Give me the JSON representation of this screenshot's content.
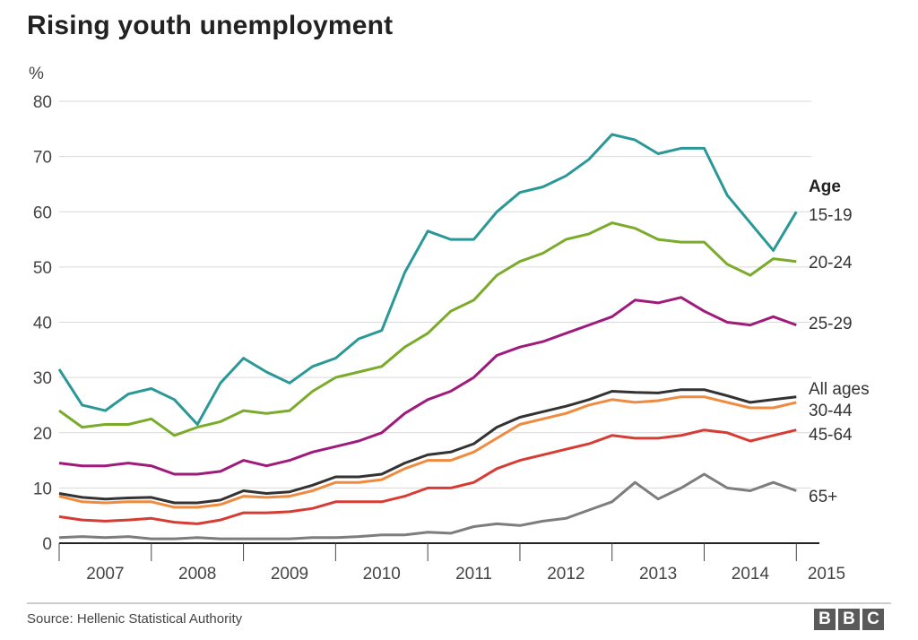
{
  "chart_data": {
    "type": "line",
    "title": "Rising youth unemployment",
    "ylabel": "%",
    "ylim": [
      0,
      80
    ],
    "yticks": [
      0,
      10,
      20,
      30,
      40,
      50,
      60,
      70,
      80
    ],
    "years": [
      "2007",
      "2008",
      "2009",
      "2010",
      "2011",
      "2012",
      "2013",
      "2014",
      "2015"
    ],
    "x_range": [
      2006.75,
      2015.0
    ],
    "grid": true,
    "legend_title": "Age",
    "legend_placement": "right",
    "x": [
      2006.75,
      2007.0,
      2007.25,
      2007.5,
      2007.75,
      2008.0,
      2008.25,
      2008.5,
      2008.75,
      2009.0,
      2009.25,
      2009.5,
      2009.75,
      2010.0,
      2010.25,
      2010.5,
      2010.75,
      2011.0,
      2011.25,
      2011.5,
      2011.75,
      2012.0,
      2012.25,
      2012.5,
      2012.75,
      2013.0,
      2013.25,
      2013.5,
      2013.75,
      2014.0,
      2014.25,
      2014.5,
      2014.75
    ],
    "series": [
      {
        "name": "15-19",
        "color": "#2a9896",
        "values": [
          31.5,
          25.0,
          24.0,
          27.0,
          28.0,
          26.0,
          21.5,
          29.0,
          33.5,
          31.0,
          29.0,
          32.0,
          33.5,
          37.0,
          38.5,
          49.0,
          56.5,
          55.0,
          55.0,
          60.0,
          63.5,
          64.5,
          66.5,
          69.5,
          74.0,
          73.0,
          70.5,
          71.5,
          71.5,
          63.0,
          58.0,
          53.0,
          60.0
        ]
      },
      {
        "name": "20-24",
        "color": "#7bab2a",
        "values": [
          24.0,
          21.0,
          21.5,
          21.5,
          22.5,
          19.5,
          21.0,
          22.0,
          24.0,
          23.5,
          24.0,
          27.5,
          30.0,
          31.0,
          32.0,
          35.5,
          38.0,
          42.0,
          44.0,
          48.5,
          51.0,
          52.5,
          55.0,
          56.0,
          58.0,
          57.0,
          55.0,
          54.5,
          54.5,
          50.5,
          48.5,
          51.5,
          51.0
        ]
      },
      {
        "name": "25-29",
        "color": "#9e1a7b",
        "values": [
          14.5,
          14.0,
          14.0,
          14.5,
          14.0,
          12.5,
          12.5,
          13.0,
          15.0,
          14.0,
          15.0,
          16.5,
          17.5,
          18.5,
          20.0,
          23.5,
          26.0,
          27.5,
          30.0,
          34.0,
          35.5,
          36.5,
          38.0,
          39.5,
          41.0,
          44.0,
          43.5,
          44.5,
          42.0,
          40.0,
          39.5,
          41.0,
          39.5
        ]
      },
      {
        "name": "All ages",
        "color": "#333333",
        "values": [
          9.0,
          8.3,
          8.0,
          8.2,
          8.3,
          7.3,
          7.3,
          7.8,
          9.5,
          9.0,
          9.3,
          10.5,
          12.0,
          12.0,
          12.5,
          14.5,
          16.0,
          16.5,
          18.0,
          21.0,
          22.8,
          23.8,
          24.8,
          26.0,
          27.5,
          27.3,
          27.2,
          27.8,
          27.8,
          26.7,
          25.5,
          26.0,
          26.5
        ]
      },
      {
        "name": "30-44",
        "color": "#f08a3e",
        "values": [
          8.5,
          7.5,
          7.3,
          7.5,
          7.5,
          6.5,
          6.5,
          7.0,
          8.5,
          8.3,
          8.5,
          9.5,
          11.0,
          11.0,
          11.5,
          13.5,
          15.0,
          15.0,
          16.5,
          19.0,
          21.5,
          22.5,
          23.5,
          25.0,
          26.0,
          25.5,
          25.8,
          26.5,
          26.5,
          25.5,
          24.5,
          24.5,
          25.5
        ]
      },
      {
        "name": "45-64",
        "color": "#d63c34",
        "values": [
          4.8,
          4.2,
          4.0,
          4.2,
          4.5,
          3.8,
          3.5,
          4.2,
          5.5,
          5.5,
          5.7,
          6.3,
          7.5,
          7.5,
          7.5,
          8.5,
          10.0,
          10.0,
          11.0,
          13.5,
          15.0,
          16.0,
          17.0,
          18.0,
          19.5,
          19.0,
          19.0,
          19.5,
          20.5,
          20.0,
          18.5,
          19.5,
          20.5
        ]
      },
      {
        "name": "65+",
        "color": "#7d7d7d",
        "values": [
          1.0,
          1.2,
          1.0,
          1.2,
          0.8,
          0.8,
          1.0,
          0.8,
          0.8,
          0.8,
          0.8,
          1.0,
          1.0,
          1.2,
          1.5,
          1.5,
          2.0,
          1.8,
          3.0,
          3.5,
          3.2,
          4.0,
          4.5,
          6.0,
          7.5,
          11.0,
          8.0,
          10.0,
          12.5,
          10.0,
          9.5,
          11.0,
          9.5
        ]
      }
    ]
  },
  "footer": {
    "source": "Source: Hellenic Statistical Authority",
    "logo_letters": [
      "B",
      "B",
      "C"
    ]
  }
}
